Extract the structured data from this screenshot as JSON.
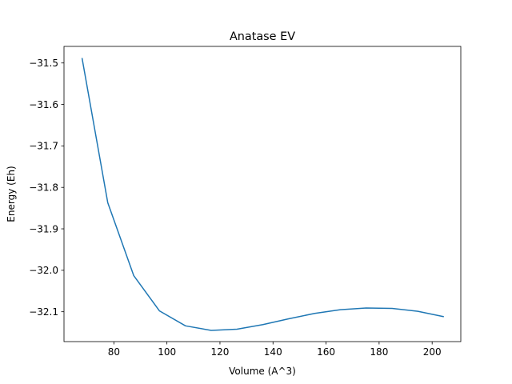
{
  "chart_data": {
    "type": "line",
    "title": "Anatase EV",
    "xlabel": "Volume (A^3)",
    "ylabel": "Energy (Eh)",
    "xlim": [
      61.2,
      210.8
    ],
    "ylim": [
      -32.172,
      -31.46
    ],
    "xticks": [
      80,
      100,
      120,
      140,
      160,
      180,
      200
    ],
    "xtick_labels": [
      "80",
      "100",
      "120",
      "140",
      "160",
      "180",
      "200"
    ],
    "yticks": [
      -32.1,
      -32.0,
      -31.9,
      -31.8,
      -31.7,
      -31.6,
      -31.5
    ],
    "ytick_labels": [
      "−32.1",
      "−32.0",
      "−31.9",
      "−31.8",
      "−31.7",
      "−31.6",
      "−31.5"
    ],
    "grid": false,
    "series": [
      {
        "name": "",
        "color": "#1f77b4",
        "x": [
          68.0,
          77.7,
          87.5,
          97.2,
          107.0,
          116.7,
          126.4,
          136.2,
          145.9,
          155.7,
          165.4,
          175.1,
          184.9,
          194.6,
          204.4
        ],
        "y": [
          -31.488,
          -31.837,
          -32.013,
          -32.098,
          -32.134,
          -32.145,
          -32.142,
          -32.131,
          -32.117,
          -32.104,
          -32.095,
          -32.091,
          -32.092,
          -32.099,
          -32.112
        ]
      }
    ]
  }
}
